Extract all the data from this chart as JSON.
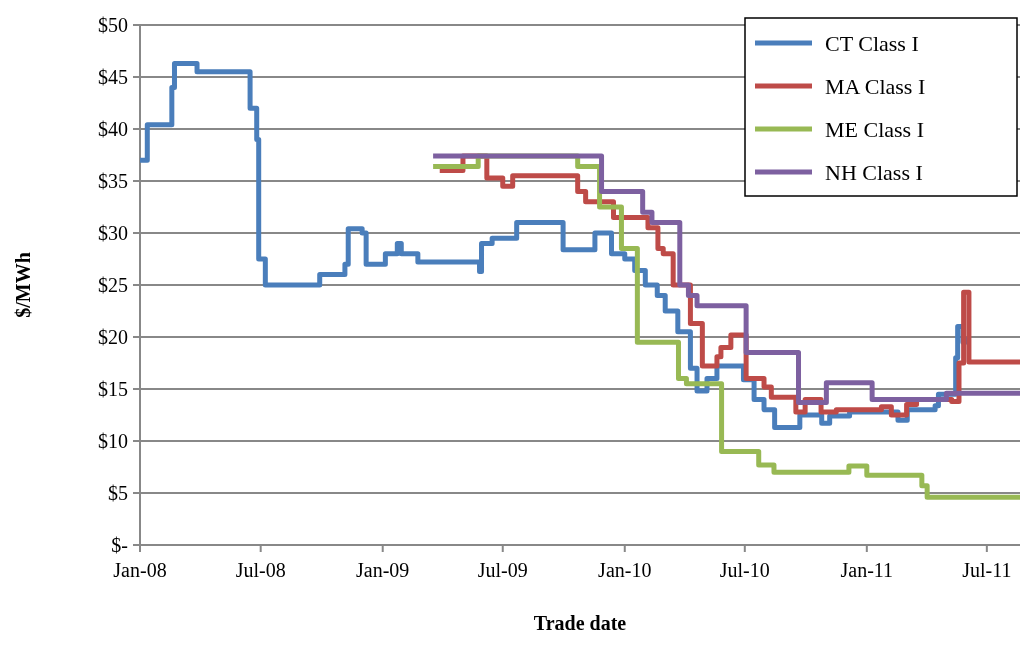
{
  "chart_data": {
    "type": "step",
    "xlabel": "Trade date",
    "ylabel": "$/MWh",
    "xlim": [
      "2008-01-01",
      "2011-08-20"
    ],
    "xticks": [
      {
        "value": "2008-01-01",
        "label": "Jan-08"
      },
      {
        "value": "2008-07-01",
        "label": "Jul-08"
      },
      {
        "value": "2009-01-01",
        "label": "Jan-09"
      },
      {
        "value": "2009-07-01",
        "label": "Jul-09"
      },
      {
        "value": "2010-01-01",
        "label": "Jan-10"
      },
      {
        "value": "2010-07-01",
        "label": "Jul-10"
      },
      {
        "value": "2011-01-01",
        "label": "Jan-11"
      },
      {
        "value": "2011-07-01",
        "label": "Jul-11"
      }
    ],
    "ylim": [
      0,
      50
    ],
    "yticks": [
      {
        "value": 0,
        "label": "$-"
      },
      {
        "value": 5,
        "label": "$5"
      },
      {
        "value": 10,
        "label": "$10"
      },
      {
        "value": 15,
        "label": "$15"
      },
      {
        "value": 20,
        "label": "$20"
      },
      {
        "value": 25,
        "label": "$25"
      },
      {
        "value": 30,
        "label": "$30"
      },
      {
        "value": 35,
        "label": "$35"
      },
      {
        "value": 40,
        "label": "$40"
      },
      {
        "value": 45,
        "label": "$45"
      },
      {
        "value": 50,
        "label": "$50"
      }
    ],
    "grid": "y",
    "legend": "top right",
    "line_style": "solid",
    "marker": "none",
    "series": [
      {
        "name": "CT Class I",
        "color": "#4a7ebb",
        "x": [
          "2008-01-01",
          "2008-01-12",
          "2008-02-18",
          "2008-02-22",
          "2008-03-27",
          "2008-06-15",
          "2008-06-25",
          "2008-06-28",
          "2008-07-08",
          "2008-09-28",
          "2008-11-05",
          "2008-11-10",
          "2008-12-01",
          "2008-12-07",
          "2009-01-05",
          "2009-01-23",
          "2009-01-29",
          "2009-02-23",
          "2009-05-27",
          "2009-05-30",
          "2009-06-15",
          "2009-07-22",
          "2009-09-30",
          "2009-11-17",
          "2009-12-12",
          "2010-01-01",
          "2010-01-16",
          "2010-02-01",
          "2010-02-19",
          "2010-03-03",
          "2010-03-22",
          "2010-04-10",
          "2010-04-20",
          "2010-05-05",
          "2010-05-20",
          "2010-06-29",
          "2010-07-15",
          "2010-07-30",
          "2010-08-15",
          "2010-09-22",
          "2010-10-25",
          "2010-11-06",
          "2010-12-06",
          "2011-02-17",
          "2011-03-03",
          "2011-04-14",
          "2011-04-19",
          "2011-05-15",
          "2011-05-18",
          "2011-05-26",
          "2011-05-30"
        ],
        "values": [
          37,
          40.4,
          44,
          46.3,
          45.5,
          42,
          39,
          27.5,
          25,
          26,
          27,
          30.4,
          30,
          27,
          28,
          29,
          28,
          27.2,
          26.3,
          29,
          29.5,
          31,
          28.4,
          30,
          28,
          27.5,
          26.4,
          25,
          24,
          22.5,
          20.5,
          17,
          14.8,
          16,
          17.2,
          15.9,
          14,
          13,
          11.3,
          12.5,
          11.7,
          12.4,
          12.8,
          12,
          13,
          13.4,
          14.5,
          18,
          21,
          19.5,
          20
        ]
      },
      {
        "name": "MA Class I",
        "color": "#be4b48",
        "x": [
          "2009-03-28",
          "2009-05-02",
          "2009-06-07",
          "2009-07-01",
          "2009-07-16",
          "2009-10-22",
          "2009-11-03",
          "2009-12-15",
          "2010-02-05",
          "2010-02-20",
          "2010-02-28",
          "2010-03-15",
          "2010-04-10",
          "2010-04-28",
          "2010-05-20",
          "2010-05-26",
          "2010-06-10",
          "2010-07-03",
          "2010-07-30",
          "2010-08-10",
          "2010-09-16",
          "2010-09-30",
          "2010-10-24",
          "2010-11-16",
          "2011-01-23",
          "2011-02-07",
          "2011-03-02",
          "2011-03-17",
          "2011-05-09",
          "2011-05-20",
          "2011-05-27",
          "2011-06-04",
          "2011-08-20"
        ],
        "values": [
          36,
          37.4,
          35.3,
          34.5,
          35.5,
          34,
          33,
          31.5,
          30.5,
          28.5,
          28,
          25,
          21.3,
          17.2,
          18.1,
          19,
          20.2,
          16,
          15.2,
          14.2,
          12.8,
          14,
          12.8,
          13,
          13.3,
          12.5,
          13.5,
          14,
          13.8,
          17.5,
          24.3,
          17.6,
          17.6
        ]
      },
      {
        "name": "ME Class I",
        "color": "#98b954",
        "x": [
          "2009-03-18",
          "2009-05-25",
          "2009-10-22",
          "2009-11-24",
          "2009-12-27",
          "2010-01-20",
          "2010-03-23",
          "2010-04-04",
          "2010-05-27",
          "2010-07-22",
          "2010-08-14",
          "2010-12-05",
          "2011-01-01",
          "2011-03-25",
          "2011-04-02",
          "2011-08-20"
        ],
        "values": [
          36.4,
          37.4,
          36.4,
          32.5,
          28.5,
          19.5,
          16,
          15.5,
          9,
          7.7,
          7,
          7.6,
          6.7,
          5.7,
          4.6,
          4.6
        ]
      },
      {
        "name": "NH Class I",
        "color": "#7d60a0",
        "x": [
          "2009-03-18",
          "2009-11-27",
          "2010-01-28",
          "2010-02-11",
          "2010-03-25",
          "2010-04-07",
          "2010-04-20",
          "2010-07-03",
          "2010-09-20",
          "2010-11-01",
          "2011-01-09",
          "2011-05-01",
          "2011-08-20"
        ],
        "values": [
          37.4,
          34,
          32,
          31,
          25,
          24,
          23,
          18.5,
          13.7,
          15.6,
          14,
          14.6,
          14.6
        ]
      }
    ]
  }
}
